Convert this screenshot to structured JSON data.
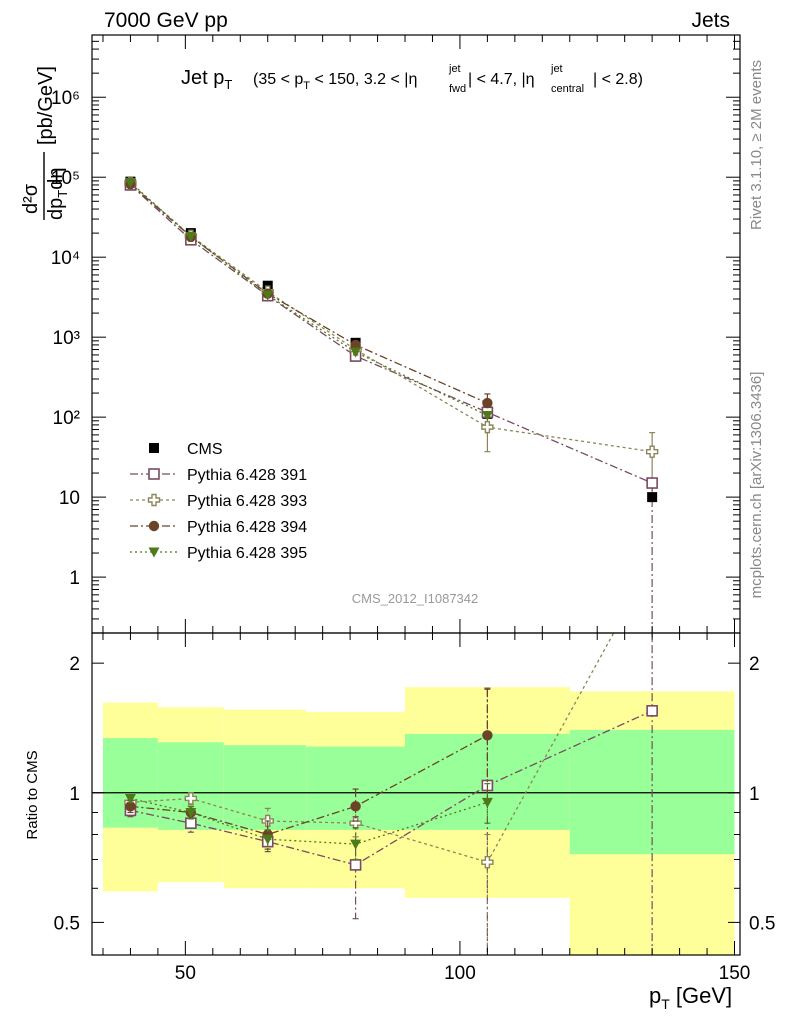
{
  "header": {
    "left": "7000 GeV pp",
    "right": "Jets"
  },
  "title": {
    "main": "Jet p",
    "main_sub": "T",
    "p1": "(35 < p",
    "p1_sub": "T",
    "p2": " < 150, 3.2 < |η",
    "p2_sup": "jet",
    "p2_sub": "fwd",
    "p3": "| < 4.7, |η",
    "p3_sup": "jet",
    "p3_sub": "central",
    "p4": "| < 2.8)"
  },
  "side_labels": {
    "rivet": "Rivet 3.1.10, ≥ 2M events",
    "mcplots": "mcplots.cern.ch [arXiv:1306.3436]"
  },
  "watermark": "CMS_2012_I1087342",
  "axes": {
    "ylabel_main_num": "d²σ",
    "ylabel_main_den": "dp",
    "ylabel_main_den_sub": "T",
    "ylabel_main_den2": "dη",
    "ylabel_main_unit": "[pb/GeV]",
    "ylabel_ratio": "Ratio to CMS",
    "xlabel": "p",
    "xlabel_sub": "T",
    "xlabel_unit": " [GeV]"
  },
  "colors": {
    "cms": "#000000",
    "p391": "#7a4a62",
    "p393": "#8b8558",
    "p394": "#6b4428",
    "p395": "#4f7a1a",
    "band_inner": "#99ff99",
    "band_outer": "#ffff99"
  },
  "chart_data": [
    {
      "type": "scatter",
      "panel": "main",
      "y_scale": "log",
      "xlim": [
        33,
        151
      ],
      "ylim": [
        0.2,
        6000000
      ],
      "x_ticks": [
        50,
        100,
        150
      ],
      "y_tick_labels": [
        "1",
        "10",
        "10²",
        "10³",
        "10⁴",
        "10⁵",
        "10⁶"
      ],
      "y_tick_values": [
        1,
        10,
        100,
        1000,
        10000,
        100000,
        1000000
      ],
      "legend_position": "middle-left",
      "series": [
        {
          "name": "CMS",
          "key": "cms",
          "marker": "square-filled",
          "x": [
            40,
            51,
            65,
            81,
            105,
            135
          ],
          "y": [
            88000,
            20000,
            4400,
            850,
            110,
            10
          ]
        },
        {
          "name": "Pythia 6.428 391",
          "key": "p391",
          "marker": "square-open",
          "x": [
            40,
            51,
            65,
            81,
            105,
            135
          ],
          "y": [
            80000,
            16500,
            3300,
            580,
            115,
            15
          ]
        },
        {
          "name": "Pythia 6.428 393",
          "key": "p393",
          "marker": "cross-open",
          "x": [
            40,
            51,
            65,
            81,
            105,
            135
          ],
          "y": [
            84000,
            18500,
            3700,
            700,
            75,
            37
          ],
          "yerr": [
            0,
            0,
            0,
            0,
            38,
            27
          ]
        },
        {
          "name": "Pythia 6.428 394",
          "key": "p394",
          "marker": "circle-filled",
          "x": [
            40,
            51,
            65,
            81,
            105
          ],
          "y": [
            82000,
            18000,
            3500,
            800,
            150
          ],
          "yerr": [
            0,
            0,
            0,
            0,
            45
          ]
        },
        {
          "name": "Pythia 6.428 395",
          "key": "p395",
          "marker": "triangle-down-filled",
          "x": [
            40,
            51,
            65,
            81,
            105
          ],
          "y": [
            86000,
            18200,
            3350,
            650,
            105
          ]
        }
      ]
    },
    {
      "type": "scatter",
      "panel": "ratio",
      "y_scale": "log",
      "xlim": [
        33,
        151
      ],
      "ylim": [
        0.42,
        2.35
      ],
      "x_ticks": [
        50,
        100,
        150
      ],
      "y_tick_labels": [
        "0.5",
        "1",
        "2"
      ],
      "y_tick_values": [
        0.5,
        1,
        2
      ],
      "bands": {
        "edges": [
          35,
          45,
          57,
          72,
          90,
          120,
          150
        ],
        "inner_low": [
          0.83,
          0.82,
          0.82,
          0.82,
          0.82,
          0.72
        ],
        "inner_high": [
          1.34,
          1.31,
          1.29,
          1.28,
          1.37,
          1.4
        ],
        "outer_low": [
          0.59,
          0.62,
          0.6,
          0.6,
          0.57,
          0.4
        ],
        "outer_high": [
          1.62,
          1.58,
          1.56,
          1.54,
          1.76,
          1.72
        ]
      },
      "series": [
        {
          "name": "Pythia 6.428 391",
          "key": "p391",
          "marker": "square-open",
          "x": [
            40,
            51,
            65,
            81,
            105,
            135
          ],
          "y": [
            0.91,
            0.85,
            0.77,
            0.68,
            1.04,
            1.55
          ],
          "ylow": [
            0.88,
            0.81,
            0.73,
            0.51,
            0.4,
            0.4
          ],
          "yhigh": [
            0.94,
            0.89,
            0.81,
            0.88,
            1.75,
            2.4
          ]
        },
        {
          "name": "Pythia 6.428 393",
          "key": "p393",
          "marker": "cross-open",
          "x": [
            40,
            51,
            65,
            81,
            105,
            128
          ],
          "y": [
            0.95,
            0.97,
            0.86,
            0.85,
            0.69,
            2.35
          ],
          "ylow": [
            0.93,
            0.94,
            0.82,
            0.79,
            0.4,
            2.35
          ],
          "yhigh": [
            0.97,
            1.0,
            0.92,
            0.92,
            0.8,
            2.35
          ]
        },
        {
          "name": "Pythia 6.428 394",
          "key": "p394",
          "marker": "circle-filled",
          "x": [
            40,
            51,
            65,
            81,
            105
          ],
          "y": [
            0.93,
            0.9,
            0.8,
            0.93,
            1.36
          ],
          "ylow": [
            0.9,
            0.87,
            0.74,
            0.86,
            0.95
          ],
          "yhigh": [
            0.96,
            0.93,
            0.86,
            1.02,
            1.74
          ]
        },
        {
          "name": "Pythia 6.428 395",
          "key": "p395",
          "marker": "triangle-down-filled",
          "x": [
            40,
            51,
            65,
            81,
            105
          ],
          "y": [
            0.97,
            0.9,
            0.78,
            0.76,
            0.95
          ],
          "ylow": [
            0.95,
            0.87,
            0.74,
            0.7,
            0.85
          ],
          "yhigh": [
            0.99,
            0.93,
            0.82,
            0.83,
            1.05
          ]
        }
      ]
    }
  ]
}
